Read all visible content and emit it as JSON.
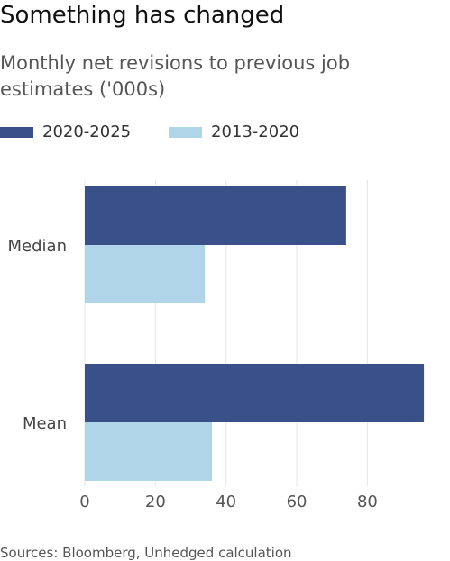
{
  "title": "Something has changed",
  "subtitle": "Monthly net revisions to previous job estimates ('000s)",
  "source": "Sources: Bloomberg, Unhedged calculation",
  "colors": {
    "series_2020_2025": "#3a5088",
    "series_2013_2020": "#b0d4e8",
    "grid": "#e6e6e6",
    "axis_text": "#555555"
  },
  "legend": [
    {
      "label": "2020-2025",
      "color": "#3a5088"
    },
    {
      "label": "2013-2020",
      "color": "#b0d4e8"
    }
  ],
  "chart_data": {
    "type": "bar",
    "orientation": "horizontal",
    "categories": [
      "Median",
      "Mean"
    ],
    "series": [
      {
        "name": "2020-2025",
        "values": [
          74,
          96
        ]
      },
      {
        "name": "2013-2020",
        "values": [
          34,
          36
        ]
      }
    ],
    "xlim": [
      0,
      97
    ],
    "xticks": [
      "0",
      "20",
      "40",
      "60",
      "80"
    ],
    "grid": "vertical",
    "legend_position": "top-left",
    "xlabel": "",
    "ylabel": ""
  }
}
